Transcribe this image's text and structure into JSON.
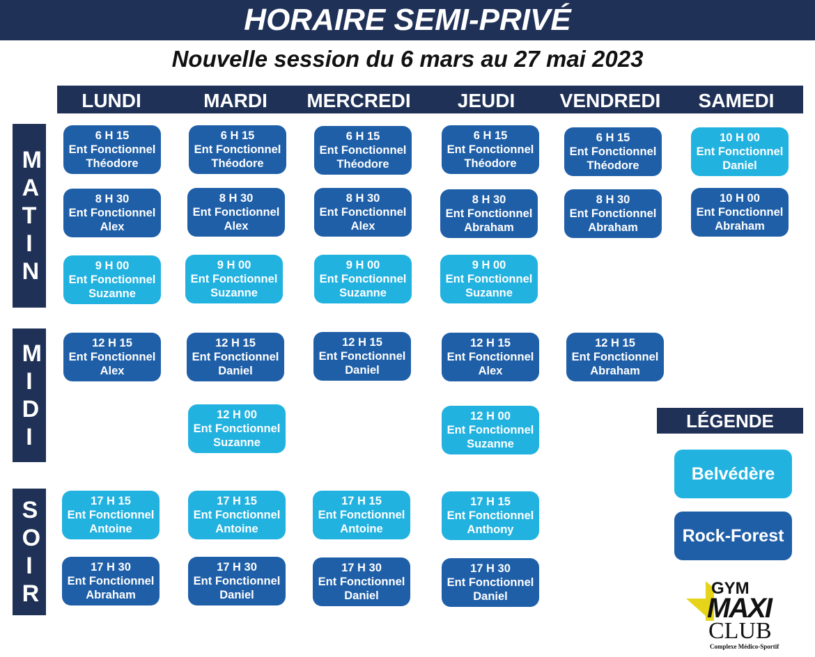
{
  "title": "HORAIRE SEMI-PRIVÉ",
  "subtitle": "Nouvelle session du 6 mars au 27 mai 2023",
  "days": [
    "LUNDI",
    "MARDI",
    "MERCREDI",
    "JEUDI",
    "VENDREDI",
    "SAMEDI"
  ],
  "periods": [
    {
      "label": "MATIN",
      "letters": [
        "M",
        "A",
        "T",
        "I",
        "N"
      ]
    },
    {
      "label": "MIDI",
      "letters": [
        "M",
        "I",
        "D",
        "I"
      ]
    },
    {
      "label": "SOIR",
      "letters": [
        "S",
        "O",
        "I",
        "R"
      ]
    }
  ],
  "colors": {
    "navy": "#1f3157",
    "rock_forest": "#1f5fa8",
    "belvedere": "#22b2e0"
  },
  "classes": [
    {
      "day": "LUNDI",
      "time": "6 H 15",
      "course": "Ent Fonctionnel",
      "coach": "Théodore",
      "location": "Rock-Forest"
    },
    {
      "day": "MARDI",
      "time": "6 H 15",
      "course": "Ent Fonctionnel",
      "coach": "Théodore",
      "location": "Rock-Forest"
    },
    {
      "day": "MERCREDI",
      "time": "6 H 15",
      "course": "Ent Fonctionnel",
      "coach": "Théodore",
      "location": "Rock-Forest"
    },
    {
      "day": "JEUDI",
      "time": "6 H 15",
      "course": "Ent Fonctionnel",
      "coach": "Théodore",
      "location": "Rock-Forest"
    },
    {
      "day": "VENDREDI",
      "time": "6 H 15",
      "course": "Ent Fonctionnel",
      "coach": "Théodore",
      "location": "Rock-Forest"
    },
    {
      "day": "SAMEDI",
      "time": "10 H 00",
      "course": "Ent Fonctionnel",
      "coach": "Daniel",
      "location": "Belvédère"
    },
    {
      "day": "LUNDI",
      "time": "8 H 30",
      "course": "Ent Fonctionnel",
      "coach": "Alex",
      "location": "Rock-Forest"
    },
    {
      "day": "MARDI",
      "time": "8 H 30",
      "course": "Ent Fonctionnel",
      "coach": "Alex",
      "location": "Rock-Forest"
    },
    {
      "day": "MERCREDI",
      "time": "8 H 30",
      "course": "Ent Fonctionnel",
      "coach": "Alex",
      "location": "Rock-Forest"
    },
    {
      "day": "JEUDI",
      "time": "8 H 30",
      "course": "Ent Fonctionnel",
      "coach": "Abraham",
      "location": "Rock-Forest"
    },
    {
      "day": "VENDREDI",
      "time": "8 H 30",
      "course": "Ent Fonctionnel",
      "coach": "Abraham",
      "location": "Rock-Forest"
    },
    {
      "day": "SAMEDI",
      "time": "10 H 00",
      "course": "Ent Fonctionnel",
      "coach": "Abraham",
      "location": "Rock-Forest"
    },
    {
      "day": "LUNDI",
      "time": "9 H 00",
      "course": "Ent Fonctionnel",
      "coach": "Suzanne",
      "location": "Belvédère"
    },
    {
      "day": "MARDI",
      "time": "9 H 00",
      "course": "Ent Fonctionnel",
      "coach": "Suzanne",
      "location": "Belvédère"
    },
    {
      "day": "MERCREDI",
      "time": "9 H 00",
      "course": "Ent Fonctionnel",
      "coach": "Suzanne",
      "location": "Belvédère"
    },
    {
      "day": "JEUDI",
      "time": "9 H 00",
      "course": "Ent Fonctionnel",
      "coach": "Suzanne",
      "location": "Belvédère"
    },
    {
      "day": "LUNDI",
      "time": "12 H 15",
      "course": "Ent Fonctionnel",
      "coach": "Alex",
      "location": "Rock-Forest"
    },
    {
      "day": "MARDI",
      "time": "12 H 15",
      "course": "Ent Fonctionnel",
      "coach": "Daniel",
      "location": "Rock-Forest"
    },
    {
      "day": "MERCREDI",
      "time": "12 H 15",
      "course": "Ent Fonctionnel",
      "coach": "Daniel",
      "location": "Rock-Forest"
    },
    {
      "day": "JEUDI",
      "time": "12 H 15",
      "course": "Ent Fonctionnel",
      "coach": "Alex",
      "location": "Rock-Forest"
    },
    {
      "day": "VENDREDI",
      "time": "12 H 15",
      "course": "Ent Fonctionnel",
      "coach": "Abraham",
      "location": "Rock-Forest"
    },
    {
      "day": "MARDI",
      "time": "12 H 00",
      "course": "Ent Fonctionnel",
      "coach": "Suzanne",
      "location": "Belvédère"
    },
    {
      "day": "JEUDI",
      "time": "12 H 00",
      "course": "Ent Fonctionnel",
      "coach": "Suzanne",
      "location": "Belvédère"
    },
    {
      "day": "LUNDI",
      "time": "17 H 15",
      "course": "Ent Fonctionnel",
      "coach": "Antoine",
      "location": "Belvédère"
    },
    {
      "day": "MARDI",
      "time": "17 H 15",
      "course": "Ent Fonctionnel",
      "coach": "Antoine",
      "location": "Belvédère"
    },
    {
      "day": "MERCREDI",
      "time": "17 H 15",
      "course": "Ent Fonctionnel",
      "coach": "Antoine",
      "location": "Belvédère"
    },
    {
      "day": "JEUDI",
      "time": "17 H 15",
      "course": "Ent Fonctionnel",
      "coach": "Anthony",
      "location": "Belvédère"
    },
    {
      "day": "LUNDI",
      "time": "17 H 30",
      "course": "Ent Fonctionnel",
      "coach": "Abraham",
      "location": "Rock-Forest"
    },
    {
      "day": "MARDI",
      "time": "17 H 30",
      "course": "Ent Fonctionnel",
      "coach": "Daniel",
      "location": "Rock-Forest"
    },
    {
      "day": "MERCREDI",
      "time": "17 H 30",
      "course": "Ent Fonctionnel",
      "coach": "Daniel",
      "location": "Rock-Forest"
    },
    {
      "day": "JEUDI",
      "time": "17 H 30",
      "course": "Ent Fonctionnel",
      "coach": "Daniel",
      "location": "Rock-Forest"
    }
  ],
  "legend": {
    "title": "LÉGENDE",
    "items": [
      "Belvédère",
      "Rock-Forest"
    ]
  },
  "logo": {
    "line1": "GYM",
    "line2": "MAXI",
    "line3": "CLUB",
    "tagline": "Complexe Médico-Sportif"
  }
}
